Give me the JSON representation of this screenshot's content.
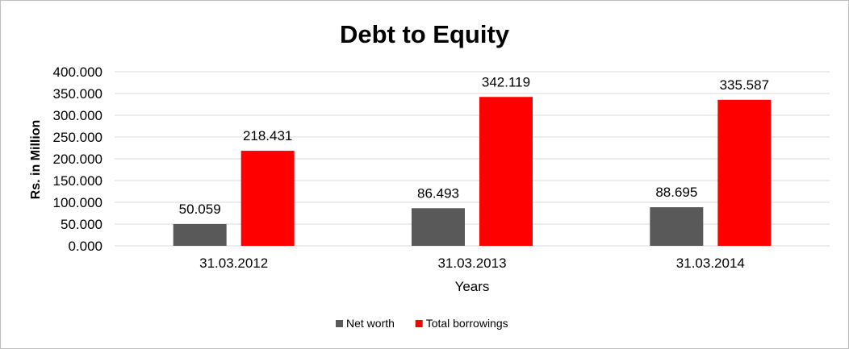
{
  "chart_data": {
    "type": "bar",
    "title": "Debt to Equity",
    "xlabel": "Years",
    "ylabel": "Rs. in Million",
    "categories": [
      "31.03.2012",
      "31.03.2013",
      "31.03.2014"
    ],
    "series": [
      {
        "name": "Net worth",
        "color": "#595959",
        "values": [
          50.059,
          86.493,
          88.695
        ],
        "labels": [
          "50.059",
          "86.493",
          "88.695"
        ]
      },
      {
        "name": "Total borrowings",
        "color": "#ff0000",
        "values": [
          218.431,
          342.119,
          335.587
        ],
        "labels": [
          "218.431",
          "342.119",
          "335.587"
        ]
      }
    ],
    "ylim": [
      0,
      400
    ],
    "yticks": [
      0,
      50,
      100,
      150,
      200,
      250,
      300,
      350,
      400
    ],
    "ytick_labels": [
      "0.000",
      "50.000",
      "100.000",
      "150.000",
      "200.000",
      "250.000",
      "300.000",
      "350.000",
      "400.000"
    ],
    "grid": true,
    "legend_position": "bottom"
  }
}
